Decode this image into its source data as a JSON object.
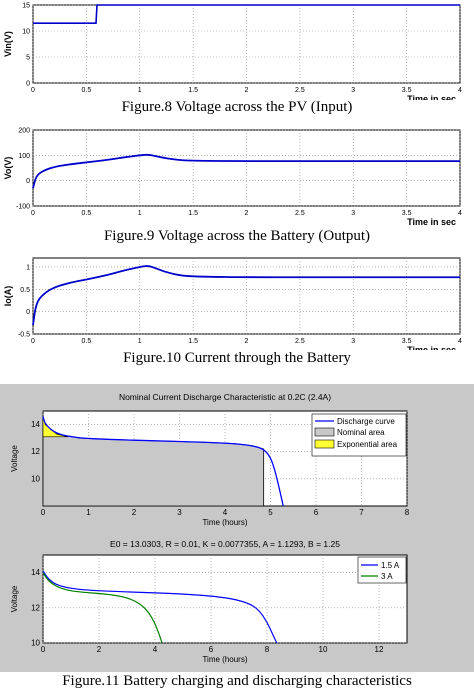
{
  "chart_data": [
    {
      "type": "line",
      "ylabel": "Vin(V)",
      "xlabel": "Time in sec",
      "xlim": [
        0,
        4
      ],
      "ylim": [
        0,
        15
      ],
      "xticks": [
        "0",
        "0.5",
        "1",
        "1.5",
        "2",
        "2.5",
        "3",
        "3.5",
        "4"
      ],
      "yticks": [
        "0",
        "5",
        "10",
        "15"
      ],
      "grid": true,
      "series": [
        {
          "x": [
            0,
            0.59,
            0.6,
            4
          ],
          "y": [
            11.5,
            11.5,
            15,
            15
          ]
        }
      ]
    },
    {
      "type": "line",
      "ylabel": "Vo(V)",
      "xlabel": "Time in sec",
      "xlim": [
        0,
        4
      ],
      "ylim": [
        -100,
        200
      ],
      "xticks": [
        "0",
        "0.5",
        "1",
        "1.5",
        "2",
        "2.5",
        "3",
        "3.5",
        "4"
      ],
      "yticks": [
        "-100",
        "0",
        "100",
        "200"
      ],
      "grid": true,
      "series": [
        {
          "x": [
            0,
            0.03,
            0.1,
            0.2,
            0.35,
            0.5,
            0.7,
            0.85,
            1.0,
            1.08,
            1.15,
            1.25,
            1.4,
            1.6,
            2.0,
            2.5,
            3.0,
            3.5,
            4.0
          ],
          "y": [
            -30,
            20,
            40,
            55,
            65,
            72,
            82,
            92,
            100,
            103,
            97,
            88,
            80,
            78,
            77,
            77,
            77,
            77,
            77
          ]
        }
      ]
    },
    {
      "type": "line",
      "ylabel": "Io(A)",
      "xlabel": "Time in sec",
      "xlim": [
        0,
        4
      ],
      "ylim": [
        -0.5,
        1.2
      ],
      "xticks": [
        "0",
        "0.5",
        "1",
        "1.5",
        "2",
        "2.5",
        "3",
        "3.5",
        "4"
      ],
      "yticks": [
        "-0.5",
        "0",
        "0.5",
        "1"
      ],
      "grid": true,
      "series": [
        {
          "x": [
            0,
            0.03,
            0.1,
            0.2,
            0.35,
            0.5,
            0.7,
            0.85,
            1.0,
            1.08,
            1.15,
            1.25,
            1.4,
            1.6,
            2.0,
            2.5,
            3.0,
            3.5,
            4.0
          ],
          "y": [
            -0.3,
            0.2,
            0.4,
            0.55,
            0.65,
            0.72,
            0.82,
            0.92,
            1.0,
            1.03,
            0.97,
            0.88,
            0.8,
            0.78,
            0.77,
            0.77,
            0.77,
            0.77,
            0.77
          ]
        }
      ]
    },
    {
      "type": "area",
      "title": "Nominal Current Discharge Characteristic at 0.2C (2.4A)",
      "xlabel": "Time (hours)",
      "ylabel": "Voltage",
      "xlim": [
        0,
        8
      ],
      "ylim": [
        8,
        15
      ],
      "xticks": [
        "0",
        "1",
        "2",
        "3",
        "4",
        "5",
        "6",
        "7",
        "8"
      ],
      "yticks": [
        "10",
        "12",
        "14"
      ],
      "grid": true,
      "legend": "top-right",
      "series": [
        {
          "name": "Discharge curve",
          "x": [
            0,
            0.05,
            0.3,
            0.8,
            1.5,
            2.5,
            3.5,
            4.2,
            4.6,
            4.85,
            5.0,
            5.1,
            5.2,
            5.28
          ],
          "y": [
            14.6,
            14.0,
            13.3,
            13.0,
            12.9,
            12.8,
            12.7,
            12.6,
            12.45,
            12.2,
            11.6,
            10.6,
            9.2,
            8.0
          ]
        },
        {
          "name": "Nominal area",
          "x_end": 4.85,
          "y_end": 12.2
        },
        {
          "name": "Exponential area",
          "x_end": 0.55,
          "y_end": 13.1
        }
      ],
      "colors": {
        "discharge": "#0000ff",
        "nominal": "#c8c8c8",
        "exponential": "#ffff33"
      }
    },
    {
      "type": "line",
      "title": "E0 = 13.0303, R = 0.01, K = 0.0077355, A = 1.1293, B = 1.25",
      "xlabel": "Time (hours)",
      "ylabel": "Voltage",
      "xlim": [
        0,
        13
      ],
      "ylim": [
        10,
        15
      ],
      "xticks": [
        "0",
        "2",
        "4",
        "6",
        "8",
        "10",
        "12"
      ],
      "yticks": [
        "10",
        "12",
        "14"
      ],
      "grid": true,
      "legend": "top-right",
      "series": [
        {
          "name": "1.5 A",
          "x": [
            0,
            0.2,
            0.6,
            1.5,
            3,
            5,
            6.5,
            7.3,
            7.7,
            8.0,
            8.2,
            8.35
          ],
          "y": [
            14.1,
            13.6,
            13.2,
            13.0,
            12.9,
            12.8,
            12.6,
            12.3,
            11.9,
            11.2,
            10.5,
            10.0
          ]
        },
        {
          "name": "3 A",
          "x": [
            0,
            0.2,
            0.6,
            1.2,
            2.2,
            3.0,
            3.5,
            3.8,
            4.0,
            4.15,
            4.25
          ],
          "y": [
            14.0,
            13.5,
            13.1,
            12.9,
            12.8,
            12.6,
            12.2,
            11.7,
            11.1,
            10.5,
            10.0
          ]
        }
      ],
      "colors": {
        "s1": "#0000ff",
        "s2": "#008000"
      }
    }
  ],
  "captions": {
    "fig8": "Figure.8 Voltage across the PV (Input)",
    "fig9": "Figure.9 Voltage across the Battery (Output)",
    "fig10": "Figure.10 Current through the Battery",
    "fig11": "Figure.11 Battery charging and discharging characteristics"
  }
}
